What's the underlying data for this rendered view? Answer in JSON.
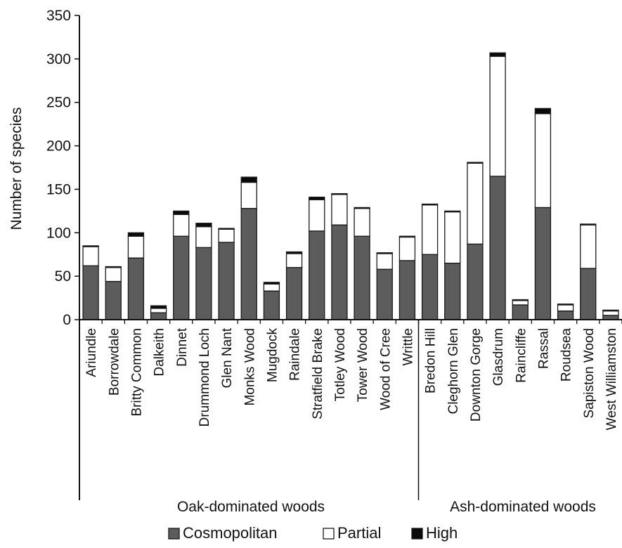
{
  "chart_data": {
    "type": "bar",
    "stacked": true,
    "ylabel": "Number of species",
    "ylim": [
      0,
      350
    ],
    "yticks": [
      0,
      50,
      100,
      150,
      200,
      250,
      300,
      350
    ],
    "categories": [
      "Ariundle",
      "Borrowdale",
      "Britty Common",
      "Dalkeith",
      "Dinnet",
      "Drummond Loch",
      "Glen Nant",
      "Monks Wood",
      "Mugdock",
      "Raindale",
      "Stratfield Brake",
      "Totley Wood",
      "Tower Wood",
      "Wood of Cree",
      "Writtle",
      "Bredon Hill",
      "Cleghorn Glen",
      "Downton Gorge",
      "Glasdrum",
      "Raincliffe",
      "Rassal",
      "Roudsea",
      "Sapiston Wood",
      "West Williamston"
    ],
    "groups": [
      {
        "label": "Oak-dominated woods",
        "count": 15
      },
      {
        "label": "Ash-dominated woods",
        "count": 9
      }
    ],
    "series": [
      {
        "name": "Cosmopolitan",
        "color": "#5c5c5c",
        "values": [
          62,
          44,
          71,
          8,
          96,
          83,
          89,
          128,
          33,
          60,
          102,
          109,
          96,
          58,
          68,
          75,
          65,
          87,
          165,
          17,
          129,
          10,
          59,
          5
        ]
      },
      {
        "name": "Partial",
        "color": "#ffffff",
        "values": [
          22,
          16,
          25,
          5,
          25,
          24,
          15,
          30,
          8,
          16,
          36,
          35,
          32,
          18,
          27,
          57,
          59,
          93,
          138,
          5,
          108,
          7,
          50,
          5
        ]
      },
      {
        "name": "High",
        "color": "#0a0a0a",
        "values": [
          1,
          1,
          4,
          3,
          4,
          4,
          1,
          6,
          2,
          2,
          3,
          1,
          1,
          1,
          1,
          1,
          1,
          1,
          4,
          1,
          6,
          1,
          1,
          1
        ]
      }
    ],
    "legend_position": "bottom"
  }
}
